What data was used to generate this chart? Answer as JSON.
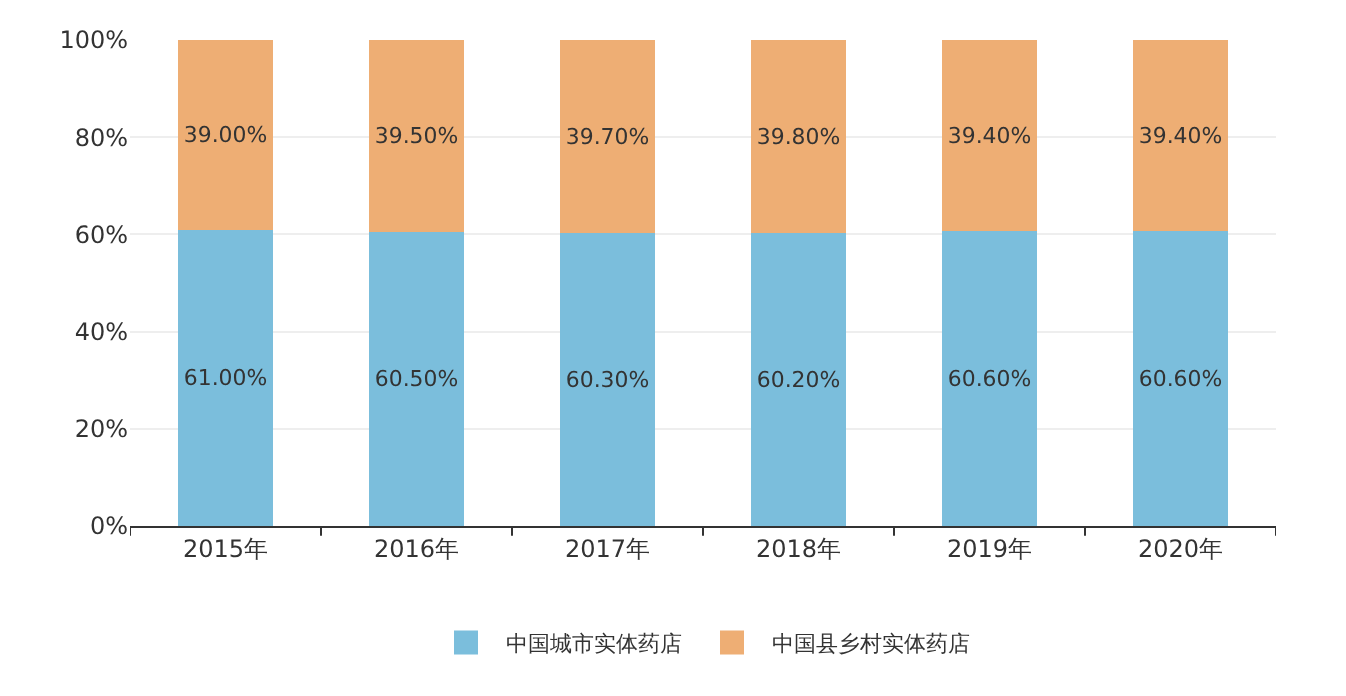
{
  "chart_data": {
    "type": "bar",
    "stacked": true,
    "categories": [
      "2015年",
      "2016年",
      "2017年",
      "2018年",
      "2019年",
      "2020年"
    ],
    "series": [
      {
        "name": "中国城市实体药店",
        "color": "#7bbedc",
        "values": [
          61.0,
          60.5,
          60.3,
          60.2,
          60.6,
          60.6
        ],
        "value_labels": [
          "61.00%",
          "60.50%",
          "60.30%",
          "60.20%",
          "60.60%",
          "60.60%"
        ]
      },
      {
        "name": "中国县乡村实体药店",
        "color": "#eeae74",
        "values": [
          39.0,
          39.5,
          39.7,
          39.8,
          39.4,
          39.4
        ],
        "value_labels": [
          "39.00%",
          "39.50%",
          "39.70%",
          "39.80%",
          "39.40%",
          "39.40%"
        ]
      }
    ],
    "ylim": [
      0,
      100
    ],
    "yticks": [
      {
        "value": 0,
        "label": "0%"
      },
      {
        "value": 20,
        "label": "20%"
      },
      {
        "value": 40,
        "label": "40%"
      },
      {
        "value": 60,
        "label": "60%"
      },
      {
        "value": 80,
        "label": "80%"
      },
      {
        "value": 100,
        "label": "100%"
      }
    ],
    "grid": "y",
    "legend": "bottom"
  }
}
